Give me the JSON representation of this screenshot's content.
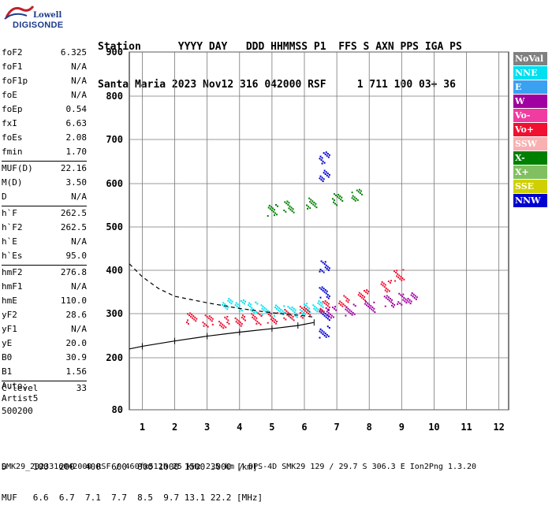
{
  "logo": {
    "line1": "Lowell",
    "line2": "DIGISONDE"
  },
  "header": {
    "labels_line": "Station      YYYY DAY   DDD HHMMSS P1  FFS S AXN PPS IGA PS",
    "values_line": "Santa Maria 2023 Nov12 316 042000 RSF     1 711 100 03+ 36"
  },
  "params": {
    "group1": [
      {
        "name": "foF2",
        "value": "6.325"
      },
      {
        "name": "foF1",
        "value": "N/A"
      },
      {
        "name": "foF1p",
        "value": "N/A"
      },
      {
        "name": "foE",
        "value": "N/A"
      },
      {
        "name": "foEp",
        "value": "0.54"
      },
      {
        "name": "fxI",
        "value": "6.63"
      },
      {
        "name": "foEs",
        "value": "2.08"
      },
      {
        "name": "fmin",
        "value": "1.70"
      }
    ],
    "group2": [
      {
        "name": "MUF(D)",
        "value": "22.16"
      },
      {
        "name": "M(D)",
        "value": "3.50"
      },
      {
        "name": "D",
        "value": "N/A"
      }
    ],
    "group3": [
      {
        "name": "h`F",
        "value": "262.5"
      },
      {
        "name": "h`F2",
        "value": "262.5"
      },
      {
        "name": "h`E",
        "value": "N/A"
      },
      {
        "name": "h`Es",
        "value": "95.0"
      }
    ],
    "group4": [
      {
        "name": "hmF2",
        "value": "276.8"
      },
      {
        "name": "hmF1",
        "value": "N/A"
      },
      {
        "name": "hmE",
        "value": "110.0"
      },
      {
        "name": "yF2",
        "value": "28.6"
      },
      {
        "name": "yF1",
        "value": "N/A"
      },
      {
        "name": "yE",
        "value": "20.0"
      },
      {
        "name": "B0",
        "value": "30.9"
      },
      {
        "name": "B1",
        "value": "1.56"
      }
    ],
    "clevel": {
      "name": "C-level",
      "value": "33"
    }
  },
  "auto": {
    "line1": "Auto:",
    "line2": "Artist5",
    "line3": "500200"
  },
  "legend": [
    {
      "label": "NoVal",
      "color": "#808080"
    },
    {
      "label": "NNE",
      "color": "#00e0f0"
    },
    {
      "label": "E",
      "color": "#3aa0f0"
    },
    {
      "label": "W",
      "color": "#a000a0"
    },
    {
      "label": "Vo-",
      "color": "#f03ca0"
    },
    {
      "label": "Vo+",
      "color": "#f01030"
    },
    {
      "label": "SSW",
      "color": "#f8b0b0"
    },
    {
      "label": "X-",
      "color": "#008000"
    },
    {
      "label": "X+",
      "color": "#80c060"
    },
    {
      "label": "SSE",
      "color": "#d0d000"
    },
    {
      "label": "NNW",
      "color": "#0000d0"
    }
  ],
  "bottom": {
    "d_line": "D     100  200  400  600  800 1000 1500 3000 [km]",
    "muf_line": "MUF   6.6  6.7  7.1  7.7  8.5  9.7 13.1 22.2 [MHz]"
  },
  "footer": "SMK29_2023316042000.RSF / 460fx512h 25 kHz 2.5 km / DPS-4D SMK29 129 / 29.7 S 306.3 E Ion2Png 1.3.20",
  "chart_data": {
    "type": "scatter",
    "x_ticks": [
      1,
      2,
      3,
      4,
      5,
      6,
      7,
      8,
      9,
      10,
      11,
      12
    ],
    "y_ticks": [
      80,
      200,
      300,
      400,
      500,
      600,
      700,
      800,
      900
    ],
    "xlim": [
      0.6,
      12.3
    ],
    "ylim": [
      80,
      900
    ],
    "grid": true,
    "series": [
      {
        "color": "#0000d0",
        "points": [
          [
            6.6,
            260
          ],
          [
            6.6,
            300
          ],
          [
            6.6,
            350
          ],
          [
            6.6,
            410
          ],
          [
            6.6,
            620
          ],
          [
            6.6,
            660
          ]
        ]
      },
      {
        "color": "#00e0f0",
        "points": [
          [
            3.6,
            325
          ],
          [
            4.0,
            320
          ],
          [
            4.4,
            315
          ],
          [
            4.8,
            310
          ],
          [
            5.2,
            308
          ],
          [
            5.6,
            305
          ],
          [
            6.0,
            312
          ],
          [
            6.4,
            318
          ]
        ]
      },
      {
        "color": "#f01030",
        "points": [
          [
            2.5,
            290
          ],
          [
            3.0,
            285
          ],
          [
            3.5,
            282
          ],
          [
            4.0,
            285
          ],
          [
            4.5,
            290
          ],
          [
            5.0,
            292
          ],
          [
            5.5,
            298
          ],
          [
            6.0,
            305
          ],
          [
            6.6,
            318
          ],
          [
            7.2,
            330
          ],
          [
            7.8,
            345
          ],
          [
            8.5,
            365
          ],
          [
            8.9,
            390
          ]
        ]
      },
      {
        "color": "#008000",
        "points": [
          [
            5.0,
            540
          ],
          [
            5.5,
            548
          ],
          [
            6.2,
            555
          ],
          [
            7.0,
            565
          ],
          [
            7.6,
            575
          ]
        ]
      },
      {
        "color": "#a000a0",
        "points": [
          [
            6.8,
            305
          ],
          [
            7.4,
            310
          ],
          [
            8.0,
            318
          ],
          [
            8.6,
            330
          ],
          [
            9.0,
            335
          ],
          [
            9.3,
            338
          ]
        ]
      }
    ],
    "profile_trace": [
      [
        0.6,
        220
      ],
      [
        1.0,
        226
      ],
      [
        2.0,
        238
      ],
      [
        3.0,
        249
      ],
      [
        4.0,
        258
      ],
      [
        5.0,
        266
      ],
      [
        5.8,
        273
      ],
      [
        6.3,
        280
      ]
    ],
    "dashed_trace": [
      [
        0.6,
        415
      ],
      [
        1.0,
        385
      ],
      [
        1.5,
        358
      ],
      [
        2.0,
        340
      ],
      [
        3.0,
        325
      ],
      [
        4.0,
        312
      ],
      [
        5.0,
        302
      ],
      [
        6.0,
        295
      ],
      [
        6.3,
        292
      ]
    ]
  }
}
